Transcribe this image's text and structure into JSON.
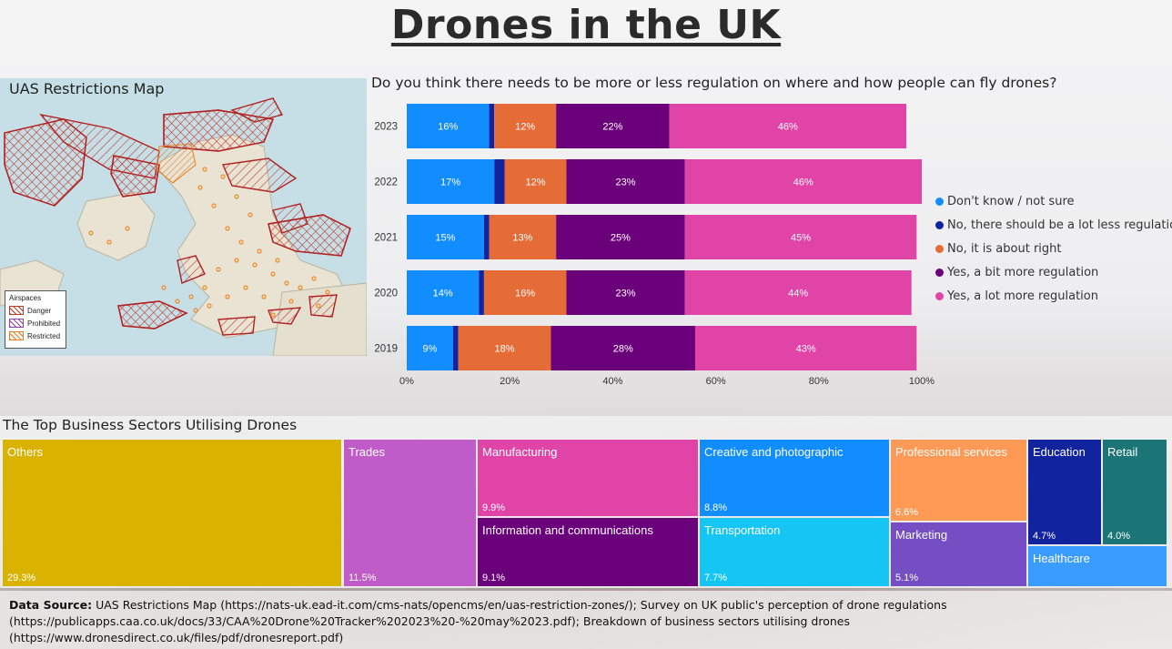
{
  "title": "Drones in the UK",
  "map": {
    "title": "UAS Restrictions Map",
    "legend_title": "Airspaces",
    "legend_items": [
      {
        "label": "Danger",
        "color": "#c0392b"
      },
      {
        "label": "Prohibited",
        "color": "#8e44ad"
      },
      {
        "label": "Restricted",
        "color": "#e67e22"
      }
    ]
  },
  "survey": {
    "question": "Do you think there needs to be more or less regulation on where and how people can fly drones?"
  },
  "chart_data": [
    {
      "type": "bar",
      "orientation": "horizontal-stacked-100",
      "categories": [
        "2023",
        "2022",
        "2021",
        "2020",
        "2019"
      ],
      "series": [
        {
          "name": "Don't know / not sure",
          "color": "#118dff",
          "values": [
            16,
            17,
            15,
            14,
            9
          ]
        },
        {
          "name": "No, there should be a lot less regulation",
          "color": "#12239e",
          "values": [
            1,
            2,
            1,
            1,
            1
          ]
        },
        {
          "name": "No, it is about right",
          "color": "#e66c37",
          "values": [
            12,
            12,
            13,
            16,
            18
          ]
        },
        {
          "name": "Yes, a bit more regulation",
          "color": "#6b007b",
          "values": [
            22,
            23,
            25,
            23,
            28
          ]
        },
        {
          "name": "Yes, a lot more regulation",
          "color": "#e044a7",
          "values": [
            46,
            46,
            45,
            44,
            43
          ]
        }
      ],
      "data_labels": [
        [
          "16%",
          "",
          "12%",
          "22%",
          "46%"
        ],
        [
          "17%",
          "",
          "12%",
          "23%",
          "46%"
        ],
        [
          "15%",
          "",
          "13%",
          "25%",
          "45%"
        ],
        [
          "14%",
          "",
          "16%",
          "23%",
          "44%"
        ],
        [
          "9%",
          "",
          "18%",
          "28%",
          "43%"
        ]
      ],
      "xlim": [
        0,
        100
      ],
      "xticks": [
        "0%",
        "20%",
        "40%",
        "60%",
        "80%",
        "100%"
      ],
      "legend_position": "right"
    },
    {
      "type": "treemap",
      "title": "The Top Business Sectors Utilising Drones",
      "items": [
        {
          "label": "Others",
          "value": "29.3%",
          "color": "#d9b300"
        },
        {
          "label": "Trades",
          "value": "11.5%",
          "color": "#c05cc8"
        },
        {
          "label": "Manufacturing",
          "value": "9.9%",
          "color": "#e044a7"
        },
        {
          "label": "Information and communications",
          "value": "9.1%",
          "color": "#6b007b"
        },
        {
          "label": "Creative and photographic",
          "value": "8.8%",
          "color": "#118dff"
        },
        {
          "label": "Transportation",
          "value": "7.7%",
          "color": "#15c6f4"
        },
        {
          "label": "Professional services",
          "value": "6.6%",
          "color": "#fe9a55"
        },
        {
          "label": "Marketing",
          "value": "5.1%",
          "color": "#744ec2"
        },
        {
          "label": "Education",
          "value": "4.7%",
          "color": "#12239e"
        },
        {
          "label": "Retail",
          "value": "4.0%",
          "color": "#1b7577"
        },
        {
          "label": "Healthcare",
          "value": "",
          "color": "#3a9cff"
        }
      ]
    }
  ],
  "source": {
    "label": "Data Source:",
    "text": " UAS Restrictions Map (https://nats-uk.ead-it.com/cms-nats/opencms/en/uas-restriction-zones/); Survey on UK public's perception of drone regulations (https://publicapps.caa.co.uk/docs/33/CAA%20Drone%20Tracker%202023%20-%20may%2023.pdf); Breakdown of business sectors utilising drones (https://www.dronesdirect.co.uk/files/pdf/dronesreport.pdf)"
  }
}
